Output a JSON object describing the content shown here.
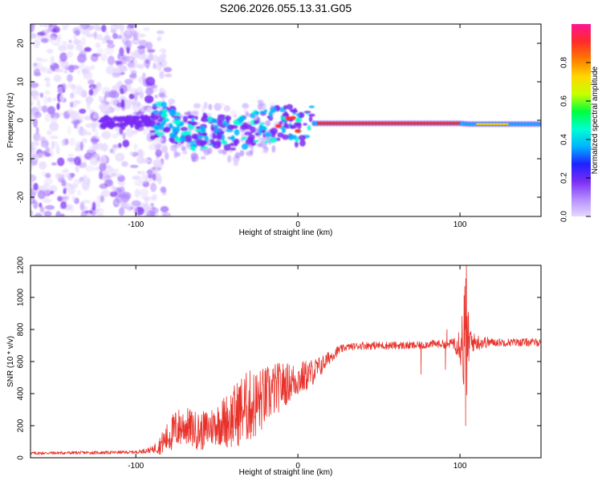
{
  "title": "S206.2026.055.13.31.G05",
  "colors": {
    "line": "#e8312a",
    "axis": "#000000",
    "colorbar_stops": [
      "#e6d9ff",
      "#b48cff",
      "#7a2cf5",
      "#1e22ff",
      "#00b4ff",
      "#00ffd2",
      "#00ff3c",
      "#c8ff00",
      "#ffd700",
      "#ff7a00",
      "#ff2a2a",
      "#ff1493"
    ]
  },
  "colorbar": {
    "label": "Normalized spectral amplitude",
    "range": [
      0.0,
      1.0
    ],
    "ticks": [
      0.0,
      0.2,
      0.4,
      0.6,
      0.8
    ],
    "tick_labels": [
      "0.0",
      "0.2",
      "0.4",
      "0.6",
      "0.8"
    ]
  },
  "chart_data": [
    {
      "type": "heatmap",
      "name": "spectrogram",
      "xlabel": "Height of straight line (km)",
      "ylabel": "Frequency (Hz)",
      "xlim": [
        -165,
        150
      ],
      "ylim": [
        -25,
        25
      ],
      "xticks": [
        -100,
        0,
        100
      ],
      "xtick_labels": [
        "-100",
        "0",
        "100"
      ],
      "yticks": [
        -20,
        -10,
        0,
        10,
        20
      ],
      "ytick_labels": [
        "-20",
        "-10",
        "0",
        "10",
        "20"
      ],
      "ridge": {
        "x": [
          -120,
          -100,
          -85,
          -75,
          -65,
          -55,
          -45,
          -38,
          -30,
          -22,
          -15,
          -10,
          -5,
          0,
          5,
          10,
          50,
          100,
          105,
          150
        ],
        "y": [
          -0.5,
          -0.5,
          0.0,
          -2.0,
          -3.5,
          -2.5,
          -3.0,
          -4.5,
          -2.0,
          -2.0,
          -1.5,
          -0.5,
          0.5,
          -3.0,
          -1.0,
          -0.8,
          -0.8,
          -0.8,
          -1.0,
          -1.0
        ]
      },
      "noise_region": {
        "x_max": -88,
        "freq_range": [
          -25,
          25
        ]
      }
    },
    {
      "type": "line",
      "name": "snr",
      "xlabel": "Height of straight line (km)",
      "ylabel": "SNR (10 * v/v)",
      "xlim": [
        -165,
        150
      ],
      "ylim": [
        0,
        1200
      ],
      "xticks": [
        -100,
        0,
        100
      ],
      "xtick_labels": [
        "-100",
        "0",
        "100"
      ],
      "yticks": [
        0,
        200,
        400,
        600,
        800,
        1000,
        1200
      ],
      "ytick_labels": [
        "0",
        "200",
        "400",
        "600",
        "800",
        "1000",
        "1200"
      ],
      "series": [
        {
          "name": "SNR",
          "x": [
            -165,
            -150,
            -120,
            -100,
            -90,
            -85,
            -80,
            -75,
            -70,
            -60,
            -50,
            -40,
            -35,
            -30,
            -25,
            -20,
            -15,
            -10,
            -5,
            0,
            5,
            10,
            15,
            20,
            25,
            30,
            40,
            60,
            75,
            77,
            80,
            90,
            92,
            95,
            100,
            102,
            103,
            104,
            105,
            108,
            120,
            150
          ],
          "mean": [
            28,
            30,
            32,
            35,
            50,
            80,
            130,
            180,
            200,
            160,
            210,
            250,
            300,
            320,
            340,
            380,
            420,
            450,
            470,
            490,
            510,
            540,
            580,
            630,
            670,
            690,
            700,
            700,
            700,
            700,
            710,
            710,
            700,
            720,
            720,
            720,
            720,
            720,
            720,
            720,
            720,
            720
          ],
          "amp": [
            10,
            10,
            10,
            10,
            20,
            60,
            100,
            130,
            120,
            120,
            130,
            200,
            220,
            230,
            220,
            190,
            170,
            150,
            120,
            110,
            100,
            80,
            60,
            40,
            30,
            20,
            25,
            25,
            25,
            25,
            25,
            25,
            25,
            25,
            120,
            300,
            500,
            400,
            200,
            60,
            25,
            25
          ]
        }
      ],
      "features": {
        "peak": {
          "x": 104,
          "y": 1200
        },
        "dip": {
          "x": 103.5,
          "y": 200
        },
        "dip2": {
          "x": 76,
          "y": 520
        },
        "dip3": {
          "x": 91,
          "y": 550
        },
        "spike": {
          "x": 92,
          "y": 800
        }
      }
    }
  ]
}
